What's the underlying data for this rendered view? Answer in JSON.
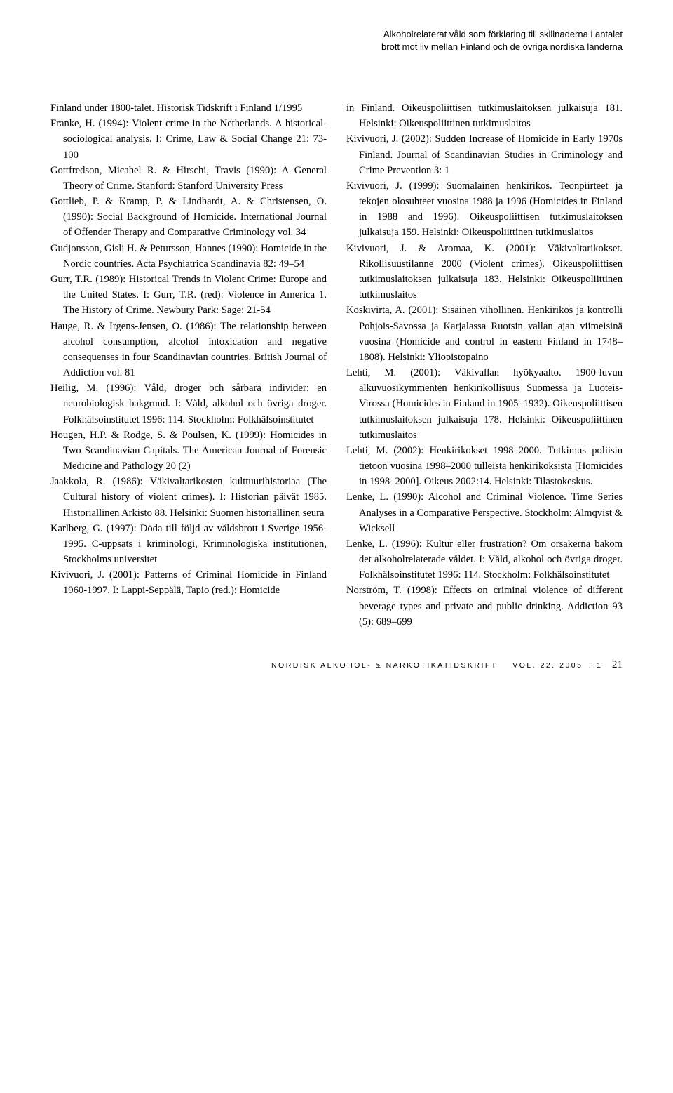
{
  "header": {
    "line1": "Alkoholrelaterat våld som förklaring till skillnaderna i antalet",
    "line2": "brott mot liv mellan Finland och de övriga nordiska länderna"
  },
  "refs_left": [
    "Finland under 1800-talet. Historisk Tidskrift i Finland 1/1995",
    "Franke, H. (1994): Violent crime in the Netherlands. A historical-sociological analysis. I: Crime, Law & Social Change 21: 73-100",
    "Gottfredson, Micahel R. & Hirschi, Travis (1990): A General Theory of Crime. Stanford: Stanford University Press",
    "Gottlieb, P. & Kramp, P. & Lindhardt, A. & Christensen, O. (1990): Social Background of Homicide. International Journal of Offender Therapy and Comparative Criminology vol. 34",
    "Gudjonsson, Gisli H. & Petursson, Hannes (1990): Homicide in the Nordic countries. Acta Psychiatrica Scandinavia 82: 49–54",
    "Gurr, T.R. (1989): Historical Trends in Violent Crime: Europe and the United States. I: Gurr, T.R. (red): Violence in America 1. The History of Crime. Newbury Park: Sage: 21-54",
    "Hauge, R. & Irgens-Jensen, O. (1986): The relationship between alcohol consumption, alcohol intoxication and negative consequenses in four Scandinavian countries. British Journal of Addiction vol. 81",
    "Heilig, M. (1996): Våld, droger och sårbara individer: en neurobiologisk bakgrund. I: Våld, alkohol och övriga droger. Folkhälsoinstitutet 1996: 114. Stockholm: Folkhälsoinstitutet",
    "Hougen, H.P. & Rodge, S. & Poulsen, K. (1999): Homicides in Two Scandinavian Capitals. The American Journal of Forensic Medicine and Pathology 20 (2)",
    "Jaakkola, R. (1986): Väkivaltarikosten kulttuurihistoriaa (The Cultural history of violent crimes). I: Historian päivät 1985. Historiallinen Arkisto 88. Helsinki: Suomen historiallinen seura",
    "Karlberg, G. (1997): Döda till följd av våldsbrott i Sverige 1956-1995. C-uppsats i kriminologi, Kriminologiska institutionen, Stockholms universitet",
    "Kivivuori, J. (2001): Patterns of Criminal Homicide in Finland 1960-1997. I: Lappi-Seppälä, Tapio (red.): Homicide"
  ],
  "refs_right": [
    "in Finland. Oikeuspoliittisen tutkimuslaitoksen julkaisuja 181. Helsinki: Oikeuspoliittinen tutkimuslaitos",
    "Kivivuori, J. (2002): Sudden Increase of Homicide in Early 1970s Finland. Journal of Scandinavian Studies in Criminology and Crime Prevention 3: 1",
    "Kivivuori, J. (1999): Suomalainen henkirikos. Teonpiirteet ja tekojen olosuhteet vuosina 1988 ja 1996 (Homicides in Finland in 1988 and 1996). Oikeuspoliittisen tutkimuslaitoksen julkaisuja 159. Helsinki: Oikeuspoliittinen tutkimuslaitos",
    "Kivivuori, J. & Aromaa, K. (2001): Väkivaltarikokset. Rikollisuustilanne 2000 (Violent crimes). Oikeuspoliittisen tutkimuslaitoksen julkaisuja 183. Helsinki: Oikeuspoliittinen tutkimuslaitos",
    "Koskivirta, A. (2001): Sisäinen vihollinen. Henkirikos ja kontrolli Pohjois-Savossa ja Karjalassa Ruotsin vallan ajan viimeisinä vuosina (Homicide and control in eastern Finland in 1748–1808). Helsinki: Yliopistopaino",
    "Lehti, M. (2001): Väkivallan hyökyaalto. 1900-luvun alkuvuosikymmenten henkirikollisuus Suomessa ja Luoteis-Virossa (Homicides in Finland in 1905–1932). Oikeuspoliittisen tutkimuslaitoksen julkaisuja 178. Helsinki: Oikeuspoliittinen tutkimuslaitos",
    "Lehti, M. (2002): Henkirikokset 1998–2000. Tutkimus poliisin tietoon vuosina 1998–2000 tulleista henkirikoksista [Homicides in 1998–2000]. Oikeus 2002:14. Helsinki: Tilastokeskus.",
    "Lenke, L. (1990): Alcohol and Criminal Violence. Time Series Analyses in a Comparative Perspective. Stockholm: Almqvist & Wicksell",
    "Lenke, L. (1996): Kultur eller frustration? Om orsakerna bakom det alkoholrelaterade våldet. I: Våld, alkohol och övriga droger. Folkhälsoinstitutet 1996: 114. Stockholm: Folkhälsoinstitutet",
    "Norström, T. (1998): Effects on criminal violence of different beverage types and private and public drinking. Addiction 93 (5): 689–699"
  ],
  "footer": {
    "journal": "NORDISK ALKOHOL- & NARKOTIKATIDSKRIFT",
    "vol_label": "VOL.",
    "vol": "22.",
    "year": "2005",
    "issue": "1",
    "page": "21"
  }
}
